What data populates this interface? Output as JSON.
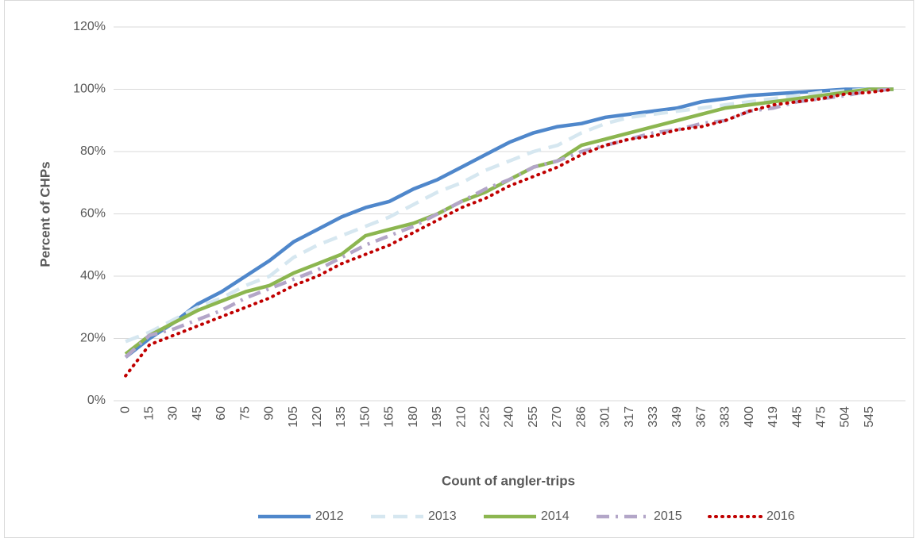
{
  "chart_data": {
    "type": "line",
    "x_label": "Count of angler-trips",
    "y_label": "Percent of CHPs",
    "categories": [
      "0",
      "15",
      "30",
      "45",
      "60",
      "75",
      "90",
      "105",
      "120",
      "135",
      "150",
      "165",
      "180",
      "195",
      "210",
      "225",
      "240",
      "255",
      "270",
      "286",
      "301",
      "317",
      "333",
      "349",
      "367",
      "383",
      "400",
      "419",
      "445",
      "475",
      "504",
      "545",
      null
    ],
    "ylim": [
      0,
      120
    ],
    "yticks": [
      {
        "value": 0,
        "label": "0%"
      },
      {
        "value": 20,
        "label": "20%"
      },
      {
        "value": 40,
        "label": "40%"
      },
      {
        "value": 60,
        "label": "60%"
      },
      {
        "value": 80,
        "label": "80%"
      },
      {
        "value": 100,
        "label": "100%"
      },
      {
        "value": 120,
        "label": "120%"
      }
    ],
    "grid": true,
    "legend": "bottom",
    "series": [
      {
        "name": "2012",
        "color": "#4f87cb",
        "style": "solid",
        "values": [
          14,
          20,
          25,
          31,
          35,
          40,
          45,
          51,
          55,
          59,
          62,
          64,
          68,
          71,
          75,
          79,
          83,
          86,
          88,
          89,
          91,
          92,
          93,
          94,
          96,
          97,
          98,
          98.5,
          99,
          99.5,
          100,
          100,
          100
        ]
      },
      {
        "name": "2013",
        "color": "#d6e7f0",
        "style": "dashed",
        "values": [
          19,
          22,
          26,
          30,
          33,
          37,
          40,
          46,
          50,
          53,
          56,
          59,
          63,
          67,
          70,
          74,
          77,
          80,
          82,
          86,
          89,
          91,
          92,
          93,
          94,
          95,
          96,
          97,
          98,
          99,
          99.5,
          100,
          100
        ]
      },
      {
        "name": "2014",
        "color": "#8cb650",
        "style": "solid",
        "values": [
          15,
          21,
          25,
          29,
          32,
          35,
          37,
          41,
          44,
          47,
          53,
          55,
          57,
          60,
          64,
          67,
          71,
          75,
          77,
          82,
          84,
          86,
          88,
          90,
          92,
          94,
          95,
          96,
          97,
          98,
          99,
          100,
          100
        ]
      },
      {
        "name": "2015",
        "color": "#b3a6c8",
        "style": "dash-dot",
        "values": [
          14,
          21,
          23,
          26,
          29,
          33,
          36,
          39,
          42,
          46,
          50,
          53,
          56,
          60,
          64,
          68,
          71,
          75,
          77,
          80,
          82,
          84,
          86,
          87,
          89,
          90,
          93,
          94,
          96,
          97,
          98,
          99.5,
          100
        ]
      },
      {
        "name": "2016",
        "color": "#c00000",
        "style": "dotted",
        "values": [
          8,
          18,
          21,
          24,
          27,
          30,
          33,
          37,
          40,
          44,
          47,
          50,
          54,
          58,
          62,
          65,
          69,
          72,
          75,
          79,
          82,
          84,
          85,
          87,
          88,
          90,
          93,
          95,
          96,
          97,
          98.5,
          99,
          100
        ]
      }
    ]
  }
}
